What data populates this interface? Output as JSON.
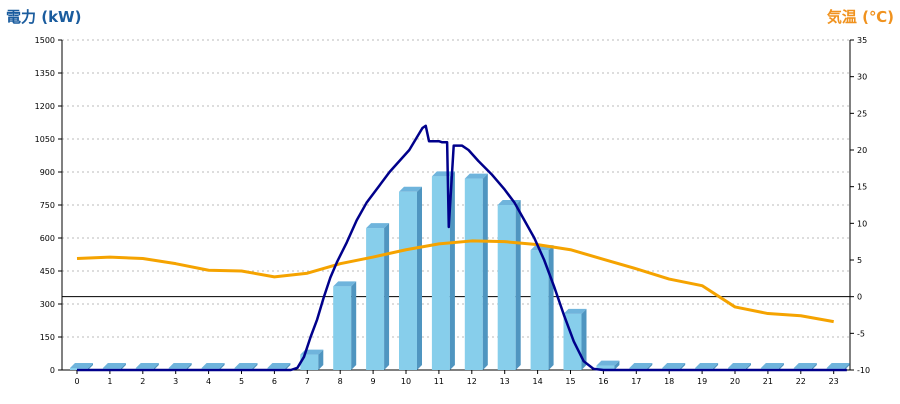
{
  "chart_data": {
    "type": "bar+line",
    "left_axis_title": "電力 (kW)",
    "right_axis_title": "気温 (℃)",
    "colors": {
      "left_title": "#1a5c9e",
      "right_title": "#f0921e",
      "bar_face": "#87ceeb",
      "bar_side": "#4f95c0",
      "bar_top": "#6fb4dc",
      "power_line": "#00008b",
      "temp_line": "#f5a300",
      "grid": "#bbbbbb",
      "zero_line": "#000000"
    },
    "y_left": {
      "min": 0,
      "max": 1500,
      "ticks": [
        "0",
        "150",
        "300",
        "450",
        "600",
        "750",
        "900",
        "1050",
        "1200",
        "1350",
        "1500"
      ]
    },
    "y_right": {
      "min": -10,
      "max": 35,
      "ticks": [
        "-10",
        "-5",
        "0",
        "5",
        "10",
        "15",
        "20",
        "25",
        "30",
        "35"
      ]
    },
    "x_ticks": [
      "0",
      "1",
      "2",
      "3",
      "4",
      "5",
      "6",
      "7",
      "8",
      "9",
      "10",
      "11",
      "12",
      "13",
      "14",
      "15",
      "16",
      "17",
      "18",
      "19",
      "20",
      "21",
      "22",
      "23"
    ],
    "bars": [
      0,
      0,
      0,
      0,
      0,
      0,
      0,
      70,
      380,
      645,
      810,
      880,
      870,
      750,
      545,
      255,
      20,
      0,
      0,
      0,
      0,
      0,
      0,
      0
    ],
    "power_line": [
      [
        0,
        0
      ],
      [
        6,
        0
      ],
      [
        6.5,
        0
      ],
      [
        6.7,
        10
      ],
      [
        6.9,
        60
      ],
      [
        7.1,
        150
      ],
      [
        7.3,
        230
      ],
      [
        7.5,
        330
      ],
      [
        7.7,
        420
      ],
      [
        7.9,
        490
      ],
      [
        8.2,
        580
      ],
      [
        8.5,
        680
      ],
      [
        8.8,
        760
      ],
      [
        9.2,
        840
      ],
      [
        9.5,
        900
      ],
      [
        9.8,
        950
      ],
      [
        10.1,
        1000
      ],
      [
        10.3,
        1050
      ],
      [
        10.5,
        1100
      ],
      [
        10.6,
        1110
      ],
      [
        10.7,
        1040
      ],
      [
        11,
        1040
      ],
      [
        11.1,
        1035
      ],
      [
        11.25,
        1035
      ],
      [
        11.3,
        650
      ],
      [
        11.45,
        1020
      ],
      [
        11.7,
        1020
      ],
      [
        11.9,
        1000
      ],
      [
        12.2,
        950
      ],
      [
        12.6,
        890
      ],
      [
        13,
        820
      ],
      [
        13.3,
        760
      ],
      [
        13.6,
        680
      ],
      [
        13.9,
        600
      ],
      [
        14.2,
        500
      ],
      [
        14.5,
        380
      ],
      [
        14.8,
        250
      ],
      [
        15.1,
        130
      ],
      [
        15.4,
        40
      ],
      [
        15.7,
        5
      ],
      [
        16,
        0
      ],
      [
        23.4,
        0
      ]
    ],
    "temperature": [
      5.2,
      5.4,
      5.2,
      4.5,
      3.6,
      3.5,
      2.7,
      3.2,
      4.5,
      5.4,
      6.4,
      7.2,
      7.6,
      7.5,
      7.1,
      6.4,
      5.1,
      3.8,
      2.4,
      1.5,
      -1.4,
      -2.3,
      -2.6,
      -3.4
    ]
  }
}
